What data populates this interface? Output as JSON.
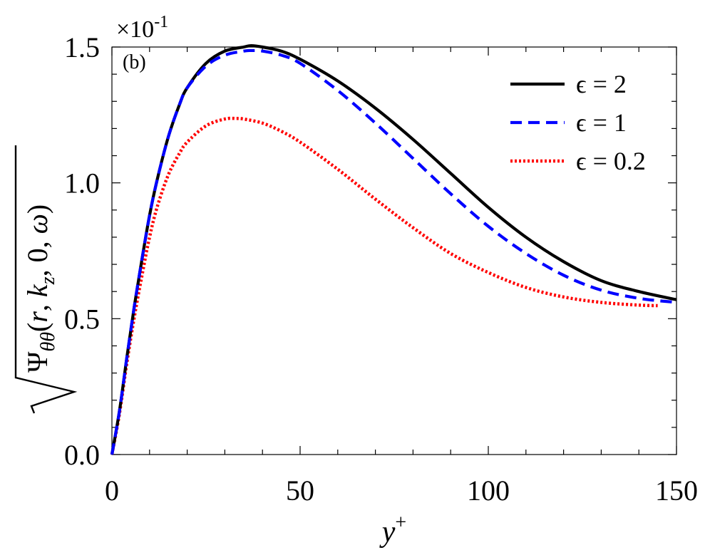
{
  "panel_label": "(b)",
  "y_multiplier": {
    "base": "×10",
    "exponent": "-1"
  },
  "colors": {
    "e2": "#000000",
    "e1": "#0000ff",
    "e02": "#ff0000",
    "axis": "#000000"
  },
  "chart_data": {
    "type": "line",
    "title": "",
    "xlabel": {
      "base": "y",
      "sup": "+"
    },
    "ylabel": {
      "prefix": "Ψ",
      "sub": "θθ",
      "args": [
        {
          "t": "(",
          "i": false
        },
        {
          "t": "r",
          "i": true
        },
        {
          "t": ", ",
          "i": false
        },
        {
          "t": "k",
          "i": true
        },
        {
          "t": "z",
          "i": true,
          "sub": true
        },
        {
          "t": ", 0, ",
          "i": false
        },
        {
          "t": "ω",
          "i": true
        },
        {
          "t": ")",
          "i": false
        }
      ]
    },
    "xlim": [
      0,
      150
    ],
    "ylim": [
      0,
      1.5
    ],
    "x_ticks": [
      "0",
      "50",
      "100",
      "150"
    ],
    "x_tick_values": [
      0,
      50,
      100,
      150
    ],
    "y_ticks": [
      "0.0",
      "0.5",
      "1.0",
      "1.5"
    ],
    "y_tick_values": [
      0,
      0.5,
      1.0,
      1.5
    ],
    "legend_position": "top-right",
    "series": [
      {
        "name": "ϵ = 2",
        "style": "solid",
        "color_key": "e2",
        "x": [
          0,
          2,
          4,
          6,
          8,
          10,
          12,
          15,
          18,
          20,
          25,
          30,
          35,
          37,
          40,
          45,
          50,
          60,
          70,
          80,
          90,
          100,
          110,
          120,
          130,
          140,
          150
        ],
        "y": [
          0,
          0.16,
          0.36,
          0.55,
          0.72,
          0.88,
          1.01,
          1.17,
          1.29,
          1.35,
          1.44,
          1.485,
          1.5,
          1.505,
          1.5,
          1.485,
          1.455,
          1.375,
          1.275,
          1.16,
          1.035,
          0.91,
          0.8,
          0.71,
          0.64,
          0.6,
          0.57
        ]
      },
      {
        "name": "ϵ = 1",
        "style": "dashed",
        "color_key": "e1",
        "x": [
          0,
          2,
          4,
          6,
          8,
          10,
          12,
          15,
          18,
          20,
          25,
          30,
          35,
          37,
          40,
          45,
          50,
          60,
          70,
          80,
          90,
          100,
          110,
          120,
          130,
          140,
          150
        ],
        "y": [
          0,
          0.16,
          0.36,
          0.55,
          0.72,
          0.88,
          1.01,
          1.17,
          1.29,
          1.35,
          1.43,
          1.47,
          1.485,
          1.487,
          1.485,
          1.47,
          1.44,
          1.34,
          1.22,
          1.09,
          0.96,
          0.84,
          0.74,
          0.66,
          0.605,
          0.575,
          0.56
        ]
      },
      {
        "name": "ϵ = 0.2",
        "style": "dotted",
        "color_key": "e02",
        "x": [
          0,
          2,
          4,
          6,
          8,
          10,
          12,
          15,
          18,
          20,
          25,
          30,
          33,
          35,
          40,
          45,
          50,
          60,
          70,
          80,
          90,
          100,
          110,
          120,
          130,
          140,
          145
        ],
        "y": [
          0,
          0.15,
          0.34,
          0.51,
          0.66,
          0.8,
          0.91,
          1.03,
          1.11,
          1.15,
          1.21,
          1.235,
          1.237,
          1.235,
          1.22,
          1.19,
          1.15,
          1.05,
          0.94,
          0.835,
          0.74,
          0.67,
          0.615,
          0.58,
          0.56,
          0.55,
          0.548
        ]
      }
    ]
  }
}
